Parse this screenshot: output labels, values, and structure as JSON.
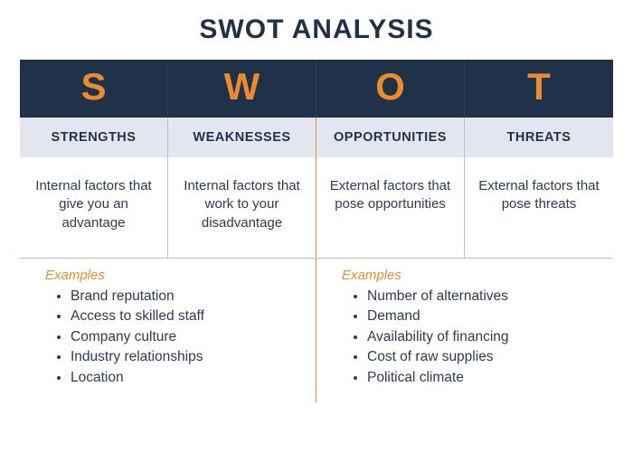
{
  "title": "SWOT ANALYSIS",
  "style": {
    "type": "infographic",
    "navy": "#1f3249",
    "orange": "#ec8a2e",
    "subheader_bg": "#e3e6ef",
    "body_text_color": "#2a3c55",
    "grid_border_color": "#bfbfbf",
    "center_divider_color": "#ec8a2e",
    "title_fontsize": 30,
    "letter_fontsize": 42,
    "subtitle_fontsize": 14.5,
    "desc_fontsize": 15,
    "bullet_fontsize": 15.5,
    "columns": 4
  },
  "cols": [
    {
      "letter": "S",
      "subtitle": "STRENGTHS",
      "desc": "Internal factors that give you an advantage"
    },
    {
      "letter": "W",
      "subtitle": "WEAKNESSES",
      "desc": "Internal factors that work to your disadvantage"
    },
    {
      "letter": "O",
      "subtitle": "OPPORTUNITIES",
      "desc": "External factors that pose opportunities"
    },
    {
      "letter": "T",
      "subtitle": "THREATS",
      "desc": "External factors that pose threats"
    }
  ],
  "examples": {
    "label": "Examples",
    "left": [
      "Brand reputation",
      "Access to skilled staff",
      "Company culture",
      "Industry relationships",
      "Location"
    ],
    "right": [
      "Number of alternatives",
      "Demand",
      "Availability of financing",
      "Cost of raw supplies",
      "Political climate"
    ]
  }
}
